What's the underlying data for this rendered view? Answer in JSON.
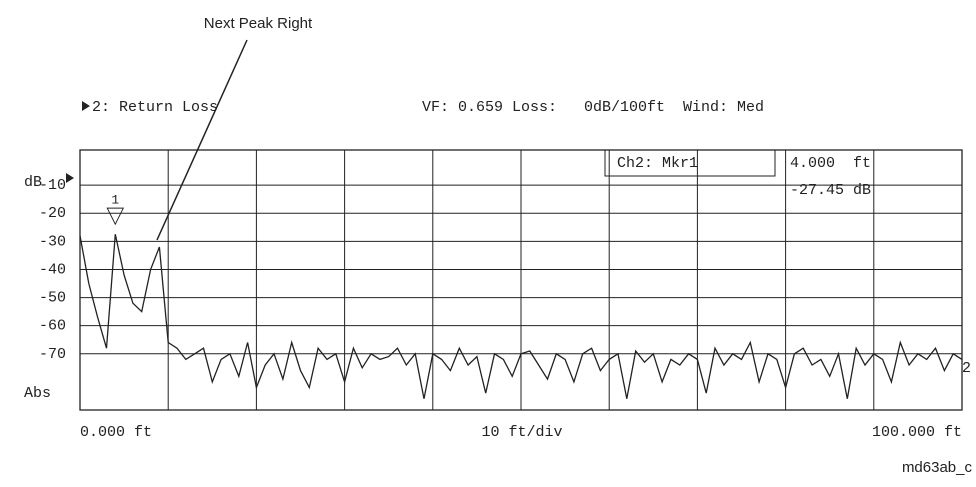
{
  "chart_data": {
    "type": "line",
    "title": "2: Return Loss",
    "subtitle": "VF: 0.659 Loss:   0dB/100ft  Wind: Med",
    "annotation": "Next Peak Right",
    "figure_id": "md63ab_c",
    "y_unit_label": "dB",
    "format_label": "Abs",
    "x_scale_label": "10 ft/div",
    "trace_label": "2",
    "marker": {
      "name": "Ch2: Mkr1",
      "label": "1",
      "x": 4,
      "y": -27.45,
      "x_label": "4.000  ft",
      "y_label": "-27.45 dB"
    },
    "xlim": [
      0,
      100
    ],
    "xticks": [
      {
        "value": 0,
        "label": "0.000   ft"
      },
      {
        "value": 100,
        "label": "100.000  ft"
      }
    ],
    "ylim": [
      -90,
      2.5
    ],
    "yticks": [
      -10,
      -20,
      -30,
      -40,
      -50,
      -60,
      -70
    ],
    "grid": true,
    "series": [
      {
        "name": "Return Loss",
        "color": "#222222",
        "x": [
          0,
          1,
          2,
          3,
          4,
          5,
          6,
          7,
          8,
          9,
          10,
          11,
          12,
          13,
          14,
          15,
          16,
          17,
          18,
          19,
          20,
          21,
          22,
          23,
          24,
          25,
          26,
          27,
          28,
          29,
          30,
          31,
          32,
          33,
          34,
          35,
          36,
          37,
          38,
          39,
          40,
          41,
          42,
          43,
          44,
          45,
          46,
          47,
          48,
          49,
          50,
          51,
          52,
          53,
          54,
          55,
          56,
          57,
          58,
          59,
          60,
          61,
          62,
          63,
          64,
          65,
          66,
          67,
          68,
          69,
          70,
          71,
          72,
          73,
          74,
          75,
          76,
          77,
          78,
          79,
          80,
          81,
          82,
          83,
          84,
          85,
          86,
          87,
          88,
          89,
          90,
          91,
          92,
          93,
          94,
          95,
          96,
          97,
          98,
          99,
          100
        ],
        "values": [
          -28,
          -45,
          -57,
          -68,
          -27.45,
          -42,
          -52,
          -55,
          -40,
          -32,
          -66,
          -68,
          -72,
          -70,
          -68,
          -80,
          -72,
          -70,
          -78,
          -66,
          -82,
          -74,
          -70,
          -79,
          -66,
          -76,
          -82,
          -68,
          -72,
          -70,
          -80,
          -68,
          -75,
          -70,
          -72,
          -71,
          -68,
          -74,
          -70,
          -86,
          -70,
          -72,
          -76,
          -68,
          -74,
          -71,
          -84,
          -70,
          -72,
          -78,
          -70,
          -69,
          -74,
          -79,
          -70,
          -72,
          -80,
          -70,
          -68,
          -76,
          -72,
          -70,
          -86,
          -69,
          -73,
          -70,
          -80,
          -72,
          -74,
          -70,
          -72,
          -84,
          -68,
          -74,
          -70,
          -72,
          -66,
          -80,
          -70,
          -72,
          -82,
          -70,
          -68,
          -74,
          -72,
          -78,
          -70,
          -86,
          -68,
          -74,
          -70,
          -72,
          -80,
          -66,
          -74,
          -70,
          -72,
          -68,
          -76,
          -70,
          -72
        ]
      }
    ]
  }
}
